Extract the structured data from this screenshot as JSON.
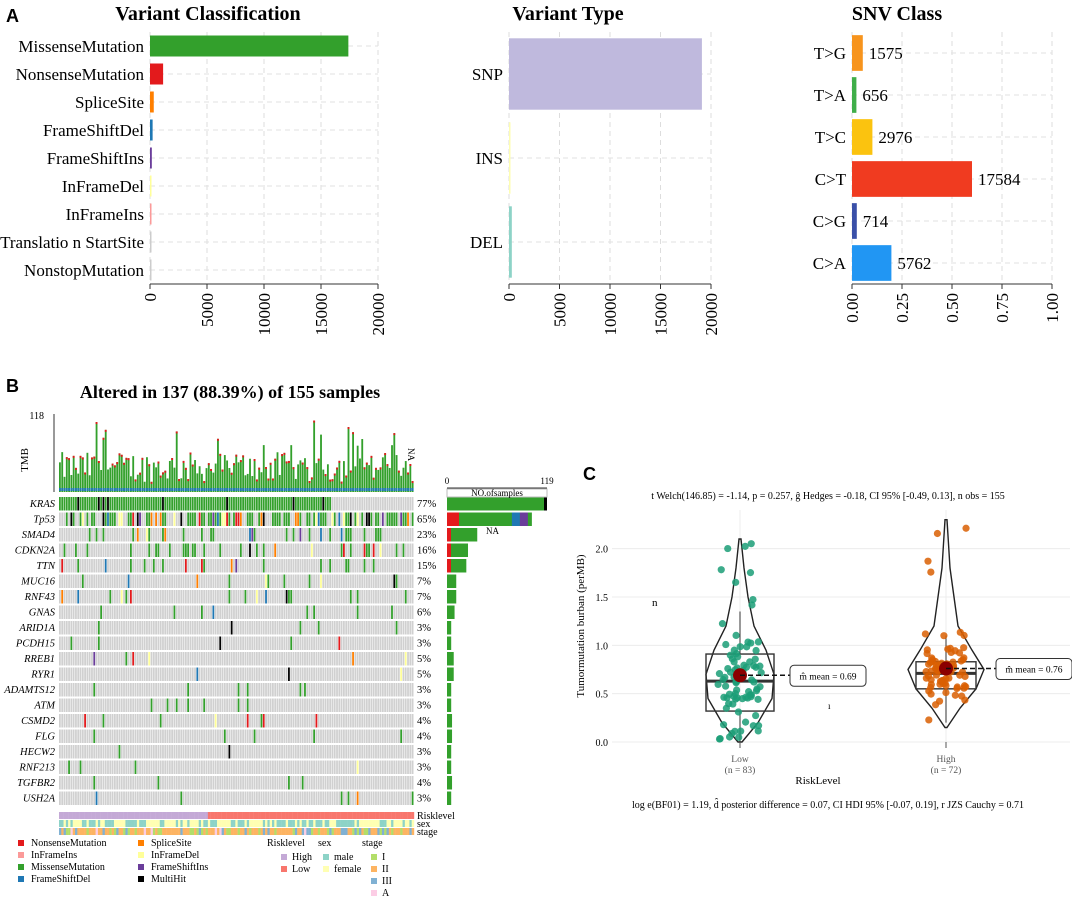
{
  "figure": {
    "panels": {
      "a": "A",
      "b": "B",
      "c": "C"
    }
  },
  "colors": {
    "missense": "#33a02c",
    "nonsense": "#e31a1c",
    "splice": "#ff7f00",
    "frameshift_del": "#1f78b4",
    "frameshift_ins": "#6a3d9a",
    "inframe_del": "#ffff99",
    "inframe_ins": "#fb9a99",
    "multihit": "#000000",
    "snp": "#bfb9dd",
    "ins": "#fdfdb2",
    "del": "#8dd3c7",
    "low_group": "#1b9e77",
    "high_group": "#d95f02",
    "risk_high": "#c4a9d6",
    "risk_low": "#f8766d",
    "male": "#8dd3c7",
    "female": "#ffffb3",
    "stage1": "#b3de69",
    "stage2": "#fdb462",
    "stage3": "#80b1d3",
    "stageA": "#fccde5",
    "grey_cell": "#d0d0d0",
    "mean_dot": "#8b0000"
  },
  "chart_data": [
    {
      "id": "variant-classification",
      "type": "bar",
      "orientation": "horizontal",
      "title": "Variant Classification",
      "categories": [
        "MissenseMutation",
        "NonsenseMutation",
        "SpliceSite",
        "FrameShiftDel",
        "FrameShiftIns",
        "InFrameDel",
        "InFrameIns",
        "Translatio n StartSite",
        "NonstopMutation"
      ],
      "values": [
        17400,
        1150,
        330,
        230,
        160,
        30,
        15,
        10,
        5
      ],
      "xlim": [
        0,
        20000
      ],
      "xticks": [
        "0",
        "5000",
        "10000",
        "15000",
        "20000"
      ],
      "colors": [
        "#33a02c",
        "#e31a1c",
        "#ff7f00",
        "#1f78b4",
        "#6a3d9a",
        "#ffff99",
        "#fb9a99",
        "#cccccc",
        "#cccccc"
      ]
    },
    {
      "id": "variant-type",
      "type": "bar",
      "orientation": "horizontal",
      "title": "Variant Type",
      "categories": [
        "SNP",
        "INS",
        "DEL"
      ],
      "values": [
        19100,
        120,
        280
      ],
      "xlim": [
        0,
        20000
      ],
      "xticks": [
        "0",
        "5000",
        "10000",
        "15000",
        "20000"
      ],
      "colors": [
        "#bfb9dd",
        "#fdfdb2",
        "#8dd3c7"
      ]
    },
    {
      "id": "snv-class",
      "type": "bar",
      "orientation": "horizontal",
      "title": "SNV Class",
      "categories": [
        "T>G",
        "T>A",
        "T>C",
        "C>T",
        "C>G",
        "C>A"
      ],
      "values": [
        0.054,
        0.022,
        0.102,
        0.6,
        0.024,
        0.197
      ],
      "labels": [
        "1575",
        "656",
        "2976",
        "17584",
        "714",
        "5762"
      ],
      "xlim": [
        0,
        1
      ],
      "xticks": [
        "0.00",
        "0.25",
        "0.50",
        "0.75",
        "1.00"
      ],
      "colors": [
        "#f7941d",
        "#3fae49",
        "#fbc30f",
        "#f03b20",
        "#3a50a8",
        "#2196f3"
      ]
    },
    {
      "id": "oncoplot",
      "type": "heatmap",
      "title": "Altered in 137 (88.39%) of 155 samples",
      "tmb_label": "TMB",
      "tmb_max": "118",
      "tmb_na": "NA",
      "samples_label": "NO.ofsamples",
      "samples_axis": [
        "0",
        "119"
      ],
      "samples_na": "NA",
      "genes": [
        "KRAS",
        "Tp53",
        "SMAD4",
        "CDKN2A",
        "TTN",
        "MUC16",
        "RNF43",
        "GNAS",
        "ARID1A",
        "PCDH15",
        "RREB1",
        "RYR1",
        "ADAMTS12",
        "ATM",
        "CSMD2",
        "FLG",
        "HECW2",
        "RNF213",
        "TGFBR2",
        "USH2A"
      ],
      "percents": [
        "77%",
        "65%",
        "23%",
        "16%",
        "15%",
        "7%",
        "7%",
        "6%",
        "3%",
        "3%",
        "5%",
        "5%",
        "3%",
        "3%",
        "4%",
        "4%",
        "3%",
        "3%",
        "4%",
        "3%"
      ],
      "altered_counts": [
        119,
        101,
        36,
        25,
        23,
        11,
        11,
        9,
        5,
        5,
        8,
        8,
        5,
        5,
        6,
        6,
        5,
        5,
        6,
        5
      ],
      "annotation_tracks": [
        "Risklevel",
        "sex",
        "stage"
      ],
      "legend_mutations": [
        "NonsenseMutation",
        "InFrameIns",
        "MissenseMutation",
        "FrameShiftDel",
        "SpliceSite",
        "InFrameDel",
        "FrameShiftIns",
        "MultiHit"
      ],
      "legend_titles": [
        "Risklevel",
        "sex",
        "stage"
      ],
      "legend_risk": [
        "High",
        "Low"
      ],
      "legend_sex": [
        "male",
        "female"
      ],
      "legend_stage": [
        "I",
        "II",
        "III",
        "A"
      ]
    },
    {
      "id": "tmb-violin",
      "type": "scatter",
      "subtitle_stats": "t Welch(146.85) = -1.14, p = 0.257, ĝ Hedges = -0.18, CI 95% [-0.49, 0.13], n obs = 155",
      "ylabel": "Tumormutation burban (perMB)",
      "xlabel": "RiskLevel",
      "ylim": [
        0,
        2.4
      ],
      "yticks": [
        "0.0",
        "0.5",
        "1.0",
        "1.5",
        "2.0"
      ],
      "n_label": "n",
      "groups": [
        {
          "name": "Low",
          "n_label": "(n = 83)",
          "mean": 0.69,
          "mean_label": "m̂ mean = 0.69",
          "median": 0.63,
          "q1": 0.32,
          "q3": 0.91,
          "whisker_low": 0.0,
          "whisker_high": 1.35,
          "color": "#1b9e77"
        },
        {
          "name": "High",
          "n_label": "(n = 72)",
          "mean": 0.76,
          "mean_label": "m̂ mean = 0.76",
          "median": 0.71,
          "q1": 0.55,
          "q3": 0.83,
          "whisker_low": 0.2,
          "whisker_high": 1.1,
          "color": "#d95f02"
        }
      ],
      "caption_stats": "log e(BF01) = 1.19, d̂ posterior difference = 0.07, CI HDI 95% [-0.07, 0.19], r JZS Cauchy = 0.71",
      "center_mark": "ı"
    }
  ]
}
